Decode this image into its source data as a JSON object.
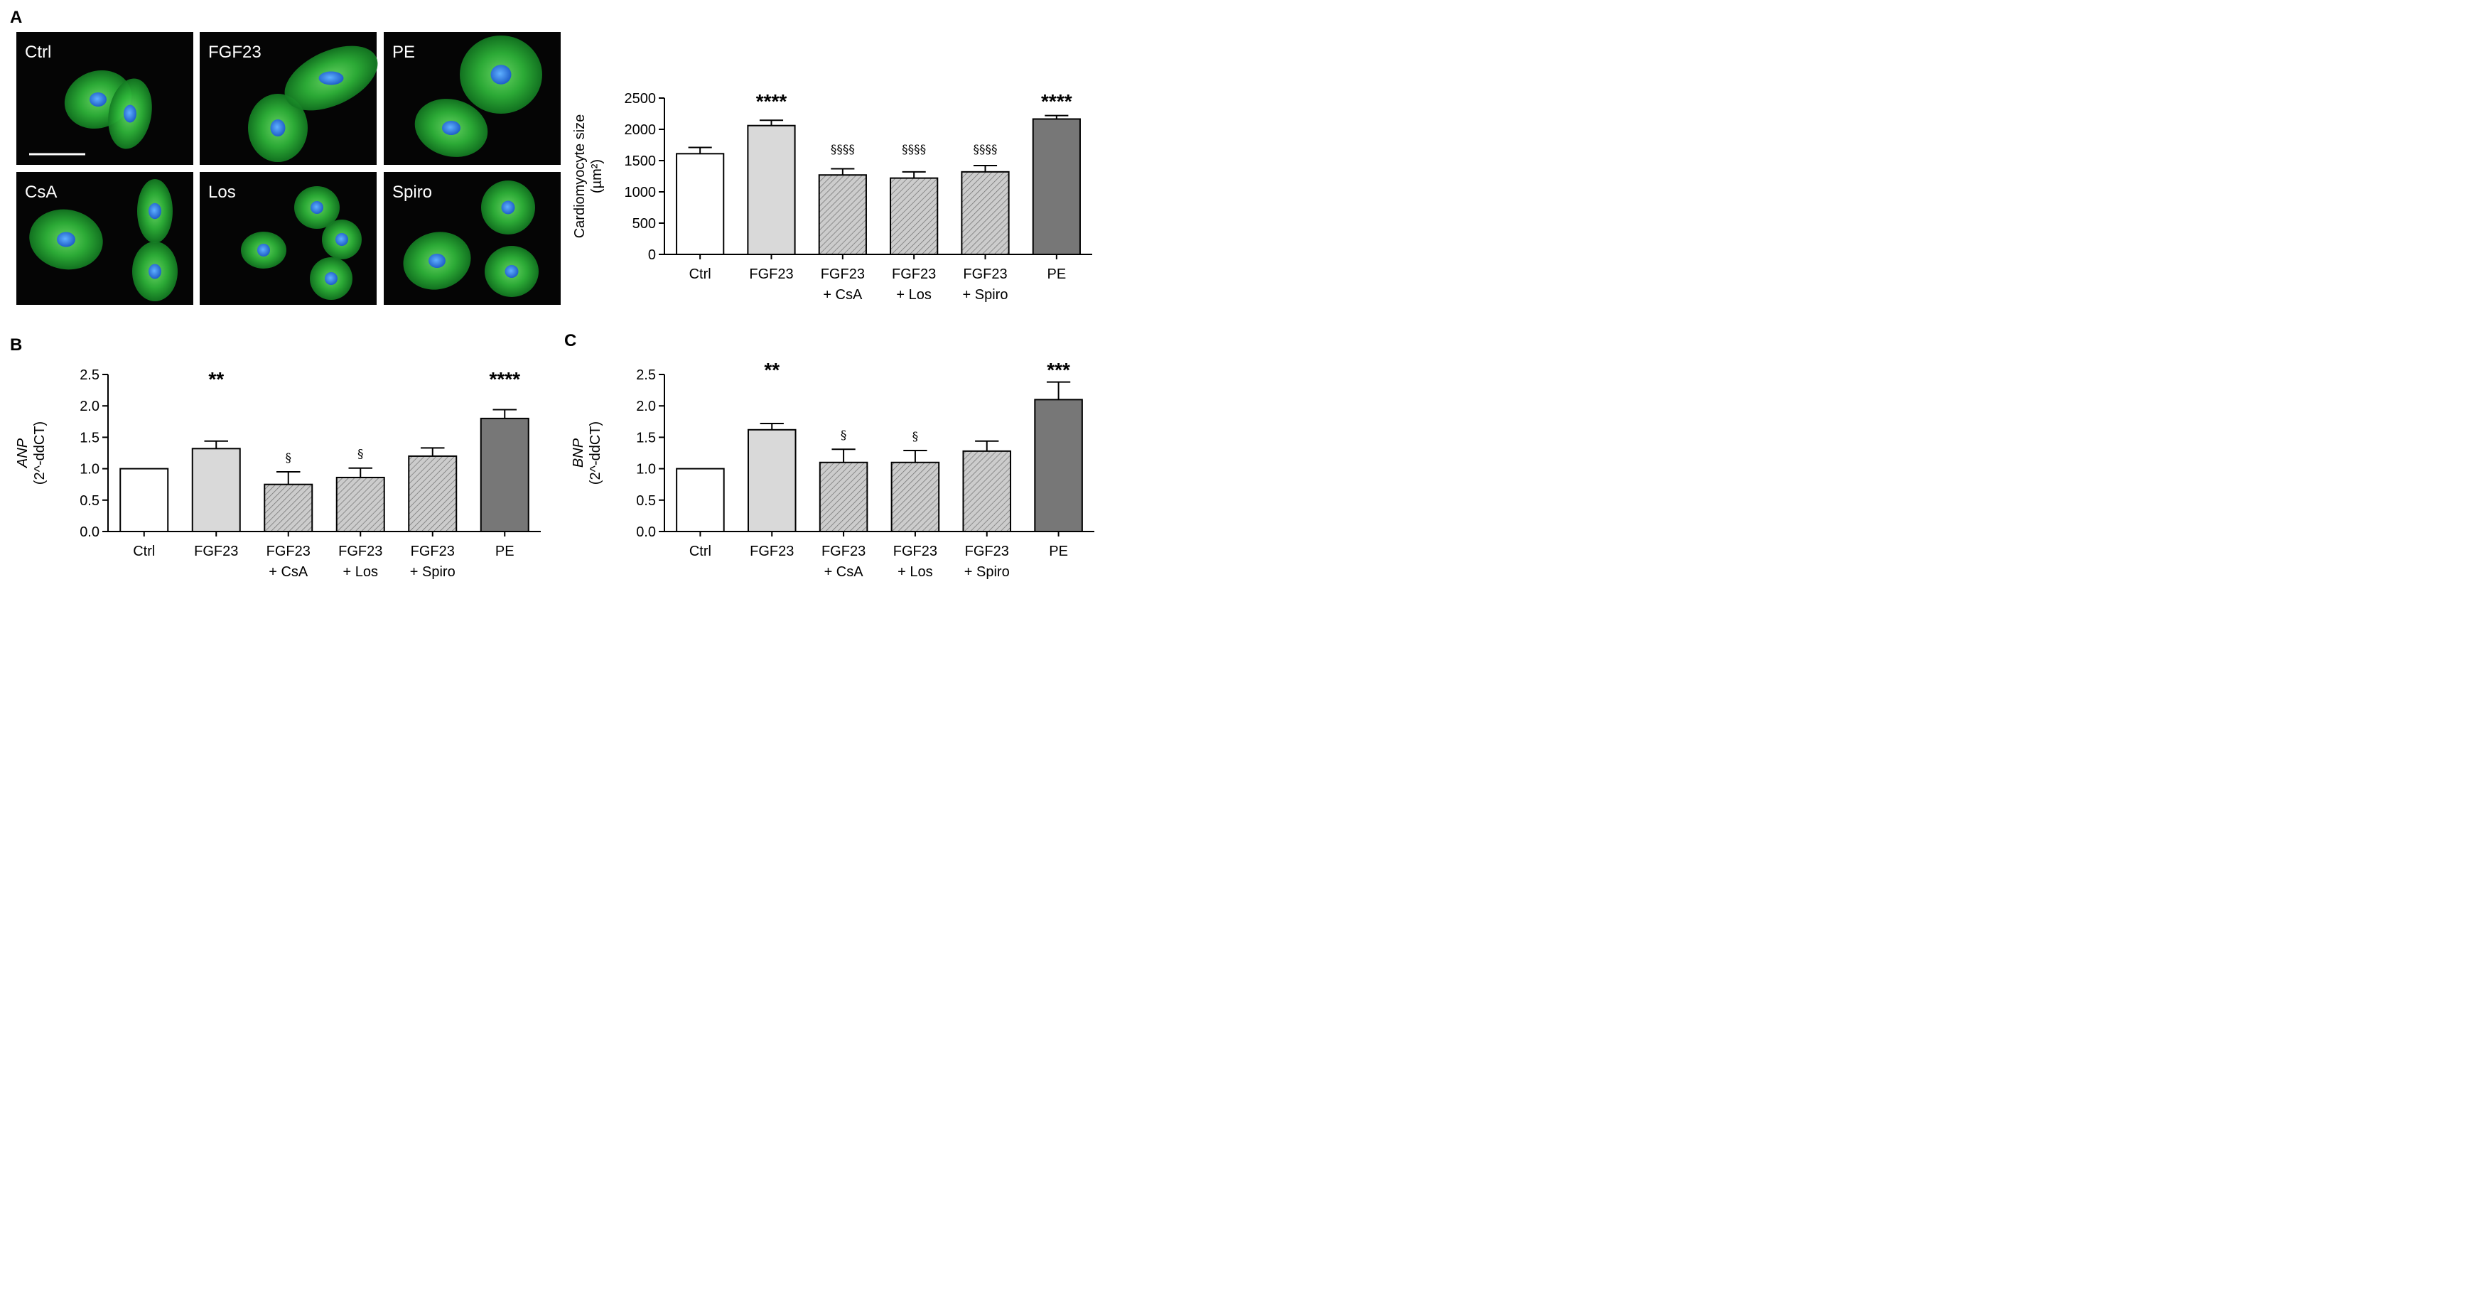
{
  "panel_letters": [
    "A",
    "B",
    "C"
  ],
  "micrographs": {
    "tiles": [
      {
        "label": "Ctrl"
      },
      {
        "label": "FGF23"
      },
      {
        "label": "PE"
      },
      {
        "label": "CsA"
      },
      {
        "label": "Los"
      },
      {
        "label": "Spiro"
      }
    ]
  },
  "colors": {
    "ctrl": "#ffffff",
    "fgf23": "#d9d9d9",
    "hatched": "#c8c8c8",
    "pe": "#777777",
    "cell_green": "#2fb83a",
    "nucleus_blue": "#2a7bdc"
  },
  "chart_data": [
    {
      "type": "bar",
      "panel": "A",
      "categories": [
        [
          "Ctrl"
        ],
        [
          "FGF23"
        ],
        [
          "FGF23",
          "+ CsA"
        ],
        [
          "FGF23",
          "+ Los"
        ],
        [
          "FGF23",
          "+ Spiro"
        ],
        [
          "PE"
        ]
      ],
      "values": [
        1610,
        2060,
        1270,
        1220,
        1320,
        2165
      ],
      "errors": [
        100,
        85,
        100,
        100,
        100,
        55
      ],
      "significance": [
        "",
        "****",
        "§§§§",
        "§§§§",
        "§§§§",
        "****"
      ],
      "fills": [
        "solid-white",
        "solid-lightgray",
        "hatched",
        "hatched",
        "hatched",
        "solid-darkgray"
      ],
      "ylabel": [
        "Cardiomyocyte size",
        "(µm²)"
      ],
      "ylim": [
        0,
        2500
      ],
      "yticks": [
        "0",
        "500",
        "1000",
        "1500",
        "2000",
        "2500"
      ]
    },
    {
      "type": "bar",
      "panel": "B",
      "categories": [
        [
          "Ctrl"
        ],
        [
          "FGF23"
        ],
        [
          "FGF23",
          "+ CsA"
        ],
        [
          "FGF23",
          "+ Los"
        ],
        [
          "FGF23",
          "+ Spiro"
        ],
        [
          "PE"
        ]
      ],
      "values": [
        1.0,
        1.32,
        0.75,
        0.86,
        1.2,
        1.8
      ],
      "errors": [
        0,
        0.12,
        0.2,
        0.15,
        0.13,
        0.14
      ],
      "significance": [
        "",
        "**",
        "§",
        "§",
        "",
        "****"
      ],
      "fills": [
        "solid-white",
        "solid-lightgray",
        "hatched",
        "hatched",
        "hatched",
        "solid-darkgray"
      ],
      "ylabel": [
        "ANP",
        "(2^-ddCT)"
      ],
      "ylim": [
        0,
        2.5
      ],
      "yticks": [
        "0.0",
        "0.5",
        "1.0",
        "1.5",
        "2.0",
        "2.5"
      ]
    },
    {
      "type": "bar",
      "panel": "C",
      "categories": [
        [
          "Ctrl"
        ],
        [
          "FGF23"
        ],
        [
          "FGF23",
          "+ CsA"
        ],
        [
          "FGF23",
          "+ Los"
        ],
        [
          "FGF23",
          "+ Spiro"
        ],
        [
          "PE"
        ]
      ],
      "values": [
        1.0,
        1.62,
        1.1,
        1.1,
        1.28,
        2.1
      ],
      "errors": [
        0,
        0.1,
        0.21,
        0.19,
        0.16,
        0.28
      ],
      "significance": [
        "",
        "**",
        "§",
        "§",
        "",
        "***"
      ],
      "fills": [
        "solid-white",
        "solid-lightgray",
        "hatched",
        "hatched",
        "hatched",
        "solid-darkgray"
      ],
      "ylabel": [
        "BNP",
        "(2^-ddCT)"
      ],
      "ylim": [
        0,
        2.5
      ],
      "yticks": [
        "0.0",
        "0.5",
        "1.0",
        "1.5",
        "2.0",
        "2.5"
      ]
    }
  ]
}
